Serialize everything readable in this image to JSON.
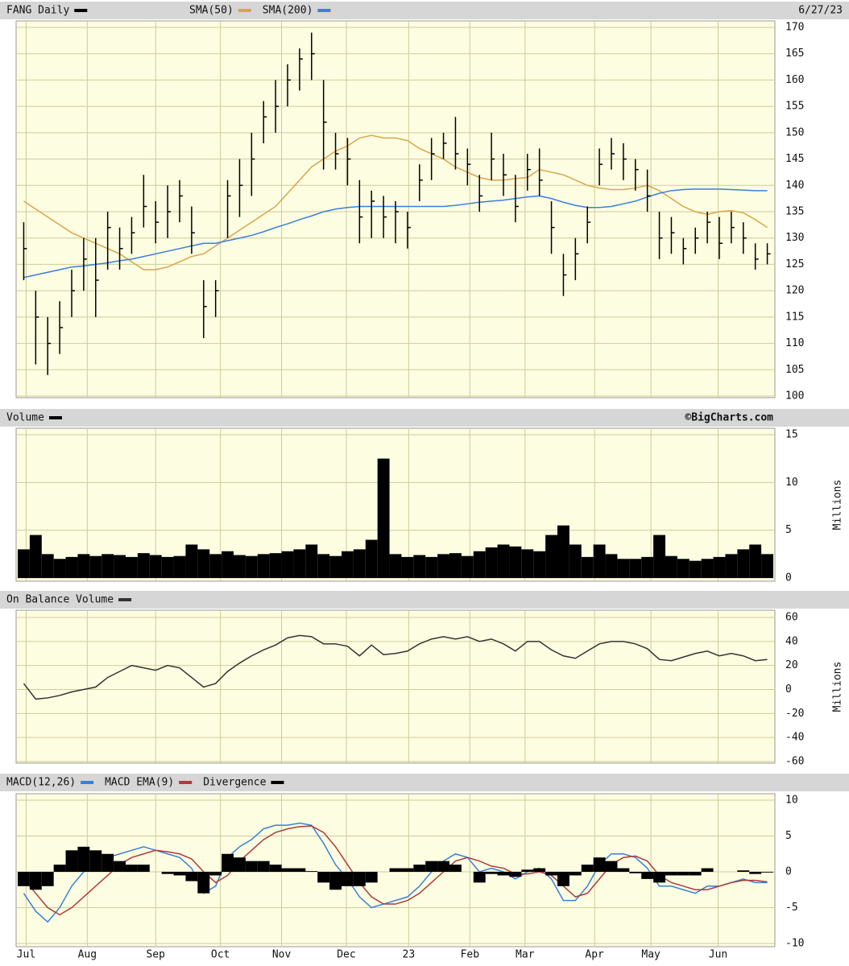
{
  "chart_data": [
    {
      "type": "ohlc",
      "title": "FANG Daily",
      "date": "6/27/23",
      "color": "#000000",
      "ylim": [
        100,
        170
      ],
      "yticks": [
        100,
        105,
        110,
        115,
        120,
        125,
        130,
        135,
        140,
        145,
        150,
        155,
        160,
        165,
        170
      ],
      "grid": true,
      "high": [
        133,
        120,
        115,
        118,
        124,
        130,
        130,
        135,
        132,
        134,
        142,
        137,
        140,
        141,
        136,
        122,
        122,
        141,
        145,
        150,
        156,
        160,
        163,
        166,
        169,
        160,
        150,
        149,
        141,
        139,
        138,
        137,
        135,
        144,
        149,
        150,
        153,
        147,
        142,
        150,
        146,
        142,
        146,
        147,
        137,
        127,
        130,
        136,
        147,
        149,
        148,
        145,
        143,
        135,
        134,
        130,
        132,
        135,
        134,
        135,
        133,
        129,
        129
      ],
      "low": [
        122,
        106,
        104,
        108,
        115,
        120,
        115,
        124,
        124,
        127,
        132,
        129,
        130,
        133,
        127,
        111,
        115,
        130,
        134,
        138,
        148,
        150,
        155,
        158,
        160,
        143,
        143,
        140,
        129,
        130,
        130,
        129,
        128,
        137,
        141,
        145,
        143,
        140,
        135,
        141,
        138,
        133,
        139,
        138,
        127,
        119,
        122,
        129,
        140,
        143,
        141,
        139,
        135,
        126,
        127,
        125,
        127,
        129,
        126,
        129,
        127,
        124,
        125
      ],
      "close": [
        128,
        115,
        110,
        113,
        120,
        126,
        122,
        132,
        128,
        131,
        136,
        133,
        135,
        138,
        131,
        117,
        120,
        138,
        140,
        145,
        153,
        155,
        160,
        164,
        165,
        152,
        146,
        145,
        134,
        137,
        134,
        135,
        132,
        141,
        146,
        148,
        146,
        144,
        138,
        145,
        142,
        136,
        143,
        141,
        132,
        123,
        127,
        133,
        144,
        146,
        145,
        143,
        138,
        130,
        131,
        128,
        130,
        133,
        129,
        132,
        130,
        126,
        127
      ],
      "series": [
        {
          "name": "SMA(50)",
          "color": "#d9a54a",
          "values": [
            137,
            135.5,
            134,
            132.5,
            131,
            130,
            129,
            128,
            127,
            125.5,
            124,
            124,
            124.5,
            125.5,
            126.5,
            127,
            128.5,
            130,
            131.5,
            133,
            134.5,
            136,
            138.5,
            141,
            143.5,
            145,
            146.5,
            147.5,
            149,
            149.5,
            149,
            149,
            148.5,
            147,
            146,
            145,
            143.5,
            142.5,
            141.5,
            141,
            141,
            141.3,
            141.5,
            143,
            142.5,
            142,
            141,
            140,
            139.5,
            139.2,
            139.2,
            139.5,
            140,
            139,
            137.5,
            136,
            135,
            134.5,
            135,
            135.2,
            134.8,
            133.5,
            132
          ]
        },
        {
          "name": "SMA(200)",
          "color": "#3a7fdc",
          "values": [
            122.5,
            123,
            123.5,
            124,
            124.5,
            124.7,
            125,
            125.3,
            125.7,
            126,
            126.5,
            127,
            127.5,
            128,
            128.5,
            129,
            129,
            129.5,
            130,
            130.5,
            131.2,
            132,
            132.7,
            133.5,
            134.2,
            135,
            135.5,
            135.8,
            136,
            136,
            136,
            136,
            136,
            136,
            136,
            136,
            136.2,
            136.5,
            136.8,
            137,
            137.2,
            137.5,
            137.8,
            138,
            137.5,
            136.8,
            136.2,
            135.8,
            135.8,
            136,
            136.5,
            137,
            137.8,
            138.5,
            139,
            139.2,
            139.3,
            139.3,
            139.3,
            139.2,
            139.1,
            139,
            139
          ]
        }
      ]
    },
    {
      "type": "bar",
      "title": "Volume",
      "source": "©BigCharts.com",
      "y_label": "Millions",
      "color": "#000000",
      "ylim": [
        0,
        15
      ],
      "yticks": [
        0,
        5,
        10,
        15
      ],
      "grid": true,
      "values": [
        3,
        4.5,
        2.5,
        2,
        2.2,
        2.5,
        2.3,
        2.5,
        2.4,
        2.2,
        2.6,
        2.4,
        2.2,
        2.3,
        3.5,
        3,
        2.5,
        2.8,
        2.4,
        2.3,
        2.5,
        2.6,
        2.8,
        3,
        3.5,
        2.5,
        2.3,
        2.8,
        3,
        4,
        12.5,
        2.5,
        2.2,
        2.4,
        2.2,
        2.5,
        2.6,
        2.3,
        2.8,
        3.2,
        3.5,
        3.3,
        3,
        2.8,
        4.5,
        5.5,
        3.5,
        2.2,
        3.5,
        2.5,
        2,
        2,
        2.2,
        4.5,
        2.3,
        2,
        1.8,
        2,
        2.2,
        2.5,
        3,
        3.5,
        2.5
      ]
    },
    {
      "type": "line",
      "title": "On Balance Volume",
      "y_label": "Millions",
      "color": "#333333",
      "ylim": [
        -60,
        60
      ],
      "yticks": [
        -60,
        -40,
        -20,
        0,
        20,
        40,
        60
      ],
      "grid": true,
      "values": [
        5,
        -8,
        -7,
        -5,
        -2,
        0,
        2,
        10,
        15,
        20,
        18,
        16,
        20,
        18,
        10,
        2,
        5,
        15,
        22,
        28,
        33,
        37,
        43,
        45,
        44,
        38,
        38,
        36,
        28,
        37,
        29,
        30,
        32,
        38,
        42,
        44,
        42,
        44,
        40,
        42,
        38,
        32,
        40,
        40,
        33,
        28,
        26,
        32,
        38,
        40,
        40,
        38,
        34,
        25,
        24,
        27,
        30,
        32,
        28,
        30,
        28,
        24,
        25
      ]
    },
    {
      "type": "macd",
      "ylim": [
        -10,
        10
      ],
      "yticks": [
        -10,
        -5,
        0,
        5,
        10
      ],
      "grid": true,
      "xlim": [
        -0.5,
        62.5
      ],
      "xticks": [
        {
          "value": 0.2,
          "label": "Jul"
        },
        {
          "value": 5.3,
          "label": "Aug"
        },
        {
          "value": 11,
          "label": "Sep"
        },
        {
          "value": 16.4,
          "label": "Oct"
        },
        {
          "value": 21.5,
          "label": "Nov"
        },
        {
          "value": 26.9,
          "label": "Dec"
        },
        {
          "value": 32.1,
          "label": "23"
        },
        {
          "value": 37.2,
          "label": "Feb"
        },
        {
          "value": 41.8,
          "label": "Mar"
        },
        {
          "value": 47.6,
          "label": "Apr"
        },
        {
          "value": 52.3,
          "label": "May"
        },
        {
          "value": 57.9,
          "label": "Jun"
        }
      ],
      "series": [
        {
          "name": "MACD(12,26)",
          "color": "#3a7fdc",
          "mark": "line",
          "values": [
            -3,
            -5.5,
            -7,
            -5,
            -2,
            0,
            1,
            2,
            2.5,
            3,
            3.5,
            3,
            2.5,
            2,
            0.5,
            -3,
            -2,
            2,
            3.5,
            4.5,
            6,
            6.5,
            6.5,
            6.8,
            6.5,
            4,
            1,
            -1,
            -3.5,
            -5,
            -4.5,
            -4,
            -3.5,
            -2,
            0,
            1.5,
            2.5,
            2,
            0,
            0.5,
            0,
            -1,
            0,
            0.5,
            -1,
            -4,
            -4,
            -2,
            1,
            2.5,
            2.5,
            2,
            0.5,
            -2,
            -2,
            -2.5,
            -3,
            -2,
            -2,
            -1.5,
            -1,
            -1.5,
            -1.5
          ]
        },
        {
          "name": "MACD EMA(9)",
          "color": "#b03a3a",
          "mark": "line",
          "values": [
            -1,
            -3,
            -5,
            -6,
            -5,
            -3.5,
            -2,
            -0.5,
            1,
            2,
            2.5,
            3,
            2.8,
            2.5,
            1.8,
            0,
            -1.5,
            -0.5,
            1.5,
            3,
            4.5,
            5.5,
            6,
            6.3,
            6.4,
            5.5,
            3.5,
            1,
            -1.5,
            -3.5,
            -4.5,
            -4.5,
            -4,
            -3,
            -1.5,
            0,
            1.5,
            2,
            1.5,
            0.8,
            0.5,
            -0.3,
            -0.3,
            0,
            -0.5,
            -2,
            -3.5,
            -3,
            -1,
            1,
            2,
            2.2,
            1.5,
            -0.5,
            -1.5,
            -2,
            -2.5,
            -2.5,
            -2,
            -1.5,
            -1.2,
            -1.2,
            -1.4
          ]
        },
        {
          "name": "Divergence",
          "color": "#000000",
          "mark": "bar",
          "values": [
            -2,
            -2.5,
            -2,
            1,
            3,
            3.5,
            3,
            2.5,
            1.5,
            1,
            1,
            0,
            -0.3,
            -0.5,
            -1.3,
            -3,
            -0.5,
            2.5,
            2,
            1.5,
            1.5,
            1,
            0.5,
            0.5,
            0.1,
            -1.5,
            -2.5,
            -2,
            -2,
            -1.5,
            0,
            0.5,
            0.5,
            1,
            1.5,
            1.5,
            1,
            0,
            -1.5,
            -0.3,
            -0.5,
            -0.7,
            0.3,
            0.5,
            -0.5,
            -2,
            -0.5,
            1,
            2,
            1.5,
            0.5,
            -0.2,
            -1,
            -1.5,
            -0.5,
            -0.5,
            -0.5,
            0.5,
            0,
            0,
            0.2,
            -0.3,
            -0.1
          ]
        }
      ]
    }
  ]
}
